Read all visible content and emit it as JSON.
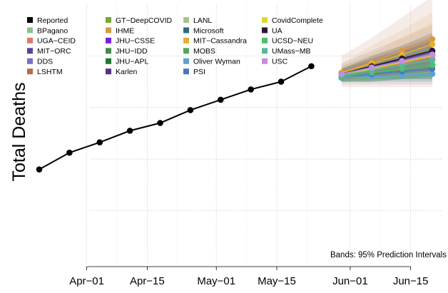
{
  "chart_data": {
    "type": "line",
    "title": "",
    "xlabel": "",
    "ylabel": "Total Deaths",
    "y_tick_labels": "not printed",
    "x_ticks": [
      "Apr−01",
      "Apr−15",
      "May−01",
      "May−15",
      "Jun−01",
      "Jun−15"
    ],
    "xlim": [
      "2020-03-21",
      "2020-06-21"
    ],
    "ylim_relative": [
      0,
      100
    ],
    "grid": true,
    "legend_placement": "top-left",
    "annotation": "Bands: 95% Prediction Intervals",
    "reported": {
      "name": "Reported",
      "x": [
        "2020-03-21",
        "2020-03-28",
        "2020-04-04",
        "2020-04-11",
        "2020-04-18",
        "2020-04-25",
        "2020-05-02",
        "2020-05-09",
        "2020-05-16",
        "2020-05-23"
      ],
      "y": [
        36,
        42.5,
        46.5,
        51,
        54,
        59,
        63,
        67,
        70,
        76
      ]
    },
    "forecast_x": [
      "2020-05-30",
      "2020-06-06",
      "2020-06-13",
      "2020-06-20"
    ],
    "series": [
      {
        "name": "BPagano",
        "color": "#8fc08f",
        "values": [
          72.5,
          74.5,
          76.5,
          78.5
        ],
        "band": [
          [
            70,
            76
          ],
          [
            70,
            80
          ],
          [
            70,
            84
          ],
          [
            70,
            88
          ]
        ]
      },
      {
        "name": "UGA−CEID",
        "color": "#e07b6a",
        "values": [
          72.5,
          75,
          77,
          79.5
        ],
        "band": [
          [
            70,
            75
          ],
          [
            70.5,
            79
          ],
          [
            71,
            83
          ],
          [
            71.5,
            87
          ]
        ]
      },
      {
        "name": "MIT−ORC",
        "color": "#5a3fa0",
        "values": [
          73,
          76,
          78.5,
          81.5
        ],
        "band": [
          [
            71,
            75
          ],
          [
            72,
            79
          ],
          [
            73,
            82
          ],
          [
            74,
            86
          ]
        ]
      },
      {
        "name": "DDS",
        "color": "#7b6ec6",
        "values": [
          72.5,
          75.5,
          78,
          80.5
        ],
        "band": [
          [
            69,
            77
          ],
          [
            69,
            82
          ],
          [
            69,
            87
          ],
          [
            69,
            92
          ]
        ]
      },
      {
        "name": "LSHTM",
        "color": "#b5694f",
        "values": [
          73,
          76,
          79,
          82
        ],
        "band": [
          [
            68,
            80
          ],
          [
            68,
            87
          ],
          [
            68,
            95
          ],
          [
            68,
            103
          ]
        ]
      },
      {
        "name": "GT−DeepCOVID",
        "color": "#76a832",
        "values": [
          72.5,
          74.5,
          76.5,
          78.5
        ],
        "band": [
          [
            70,
            75
          ],
          [
            70,
            79
          ],
          [
            71,
            82
          ],
          [
            71,
            85
          ]
        ]
      },
      {
        "name": "IHME",
        "color": "#d99a3c",
        "values": [
          73.5,
          77.5,
          82,
          86.5
        ],
        "band": [
          [
            71,
            77
          ],
          [
            73,
            84
          ],
          [
            75,
            90
          ],
          [
            77,
            97
          ]
        ]
      },
      {
        "name": "JHU−CSSE",
        "color": "#7a1fe0",
        "values": [
          73,
          75.5,
          78,
          80.5
        ],
        "band": [
          [
            71,
            75
          ],
          [
            72,
            79
          ],
          [
            73,
            83
          ],
          [
            74,
            87
          ]
        ]
      },
      {
        "name": "JHU−IDD",
        "color": "#3f8a4f",
        "values": [
          72,
          73.5,
          75,
          76.5
        ],
        "band": [
          [
            70,
            74
          ],
          [
            70,
            77
          ],
          [
            71,
            80
          ],
          [
            71,
            82
          ]
        ]
      },
      {
        "name": "JHU−APL",
        "color": "#1d7a2e",
        "values": [
          72.5,
          74.5,
          76.5,
          78.5
        ],
        "band": [
          [
            70,
            75
          ],
          [
            71,
            78
          ],
          [
            71,
            82
          ],
          [
            72,
            85
          ]
        ]
      },
      {
        "name": "Karlen",
        "color": "#5b2e86",
        "values": [
          72.5,
          75,
          77.5,
          80
        ],
        "band": [
          [
            71,
            74
          ],
          [
            72,
            78
          ],
          [
            73,
            82
          ],
          [
            74,
            86
          ]
        ]
      },
      {
        "name": "LANL",
        "color": "#a6c48a",
        "values": [
          72.5,
          74.5,
          76.5,
          78.5
        ],
        "band": [
          [
            70,
            76
          ],
          [
            70,
            80
          ],
          [
            70,
            84
          ],
          [
            70,
            88
          ]
        ]
      },
      {
        "name": "Microsoft",
        "color": "#2b6e78",
        "values": [
          72,
          73.5,
          75,
          76.5
        ],
        "band": [
          [
            70,
            74
          ],
          [
            71,
            77
          ],
          [
            71,
            79
          ],
          [
            72,
            82
          ]
        ]
      },
      {
        "name": "MIT−Cassandra",
        "color": "#e0b22e",
        "values": [
          73.5,
          77,
          80.5,
          84.5
        ],
        "band": [
          [
            71,
            76
          ],
          [
            73,
            81
          ],
          [
            75,
            87
          ],
          [
            77,
            93
          ]
        ]
      },
      {
        "name": "MOBS",
        "color": "#4fa860",
        "values": [
          72,
          73.5,
          75,
          76.5
        ],
        "band": [
          [
            70,
            74
          ],
          [
            70,
            77
          ],
          [
            71,
            80
          ],
          [
            71,
            83
          ]
        ]
      },
      {
        "name": "Oliver Wyman",
        "color": "#5fa0d8",
        "values": [
          71.5,
          72,
          72.5,
          73
        ],
        "band": [
          [
            70,
            73
          ],
          [
            70,
            74
          ],
          [
            70,
            75
          ],
          [
            70,
            76
          ]
        ]
      },
      {
        "name": "PSI",
        "color": "#4a76b8",
        "values": [
          72,
          73,
          74,
          75
        ],
        "band": [
          [
            70,
            74
          ],
          [
            70,
            76
          ],
          [
            71,
            78
          ],
          [
            71,
            80
          ]
        ]
      },
      {
        "name": "CovidComplete",
        "color": "#dcd82a",
        "values": [
          72.5,
          75,
          77.5,
          80
        ],
        "band": [
          [
            70,
            75
          ],
          [
            71,
            79
          ],
          [
            72,
            83
          ],
          [
            73,
            87
          ]
        ]
      },
      {
        "name": "UA",
        "color": "#2a1838",
        "values": [
          73,
          76,
          79,
          82
        ],
        "band": [
          [
            71,
            75
          ],
          [
            72,
            80
          ],
          [
            73,
            84
          ],
          [
            74,
            89
          ]
        ]
      },
      {
        "name": "UCSD−NEU",
        "color": "#4cc06c",
        "values": [
          72,
          73.5,
          75,
          76.5
        ],
        "band": [
          [
            70,
            74
          ],
          [
            70,
            77
          ],
          [
            71,
            80
          ],
          [
            71,
            83
          ]
        ]
      },
      {
        "name": "UMass−MB",
        "color": "#5ab897",
        "values": [
          72.5,
          74.5,
          76.5,
          78.5
        ],
        "band": [
          [
            70,
            75
          ],
          [
            71,
            78
          ],
          [
            71,
            81
          ],
          [
            72,
            84
          ]
        ]
      },
      {
        "name": "USC",
        "color": "#c38ee0",
        "values": [
          73,
          75.5,
          78,
          80.5
        ],
        "band": [
          [
            71,
            75
          ],
          [
            72,
            79
          ],
          [
            73,
            83
          ],
          [
            74,
            87
          ]
        ]
      }
    ]
  }
}
